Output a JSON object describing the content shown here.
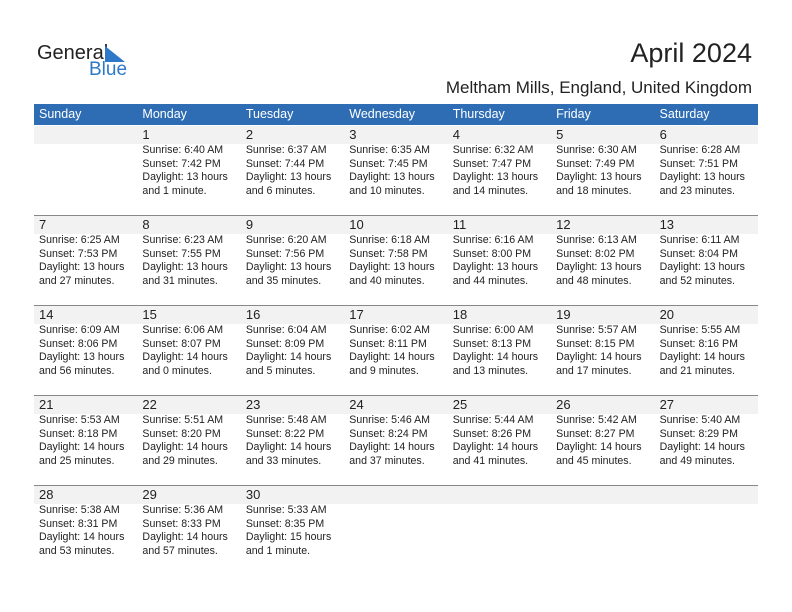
{
  "logo": {
    "general": "General",
    "blue": "Blue"
  },
  "title": "April 2024",
  "location": "Meltham Mills, England, United Kingdom",
  "colors": {
    "header": "#2e6db4",
    "logo_blue": "#2e78c8",
    "number_row": "#f2f2f2"
  },
  "weekdays": [
    "Sunday",
    "Monday",
    "Tuesday",
    "Wednesday",
    "Thursday",
    "Friday",
    "Saturday"
  ],
  "weeks": [
    [
      null,
      {
        "day": "1",
        "sunrise": "Sunrise: 6:40 AM",
        "sunset": "Sunset: 7:42 PM",
        "daylight1": "Daylight: 13 hours",
        "daylight2": "and 1 minute."
      },
      {
        "day": "2",
        "sunrise": "Sunrise: 6:37 AM",
        "sunset": "Sunset: 7:44 PM",
        "daylight1": "Daylight: 13 hours",
        "daylight2": "and 6 minutes."
      },
      {
        "day": "3",
        "sunrise": "Sunrise: 6:35 AM",
        "sunset": "Sunset: 7:45 PM",
        "daylight1": "Daylight: 13 hours",
        "daylight2": "and 10 minutes."
      },
      {
        "day": "4",
        "sunrise": "Sunrise: 6:32 AM",
        "sunset": "Sunset: 7:47 PM",
        "daylight1": "Daylight: 13 hours",
        "daylight2": "and 14 minutes."
      },
      {
        "day": "5",
        "sunrise": "Sunrise: 6:30 AM",
        "sunset": "Sunset: 7:49 PM",
        "daylight1": "Daylight: 13 hours",
        "daylight2": "and 18 minutes."
      },
      {
        "day": "6",
        "sunrise": "Sunrise: 6:28 AM",
        "sunset": "Sunset: 7:51 PM",
        "daylight1": "Daylight: 13 hours",
        "daylight2": "and 23 minutes."
      }
    ],
    [
      {
        "day": "7",
        "sunrise": "Sunrise: 6:25 AM",
        "sunset": "Sunset: 7:53 PM",
        "daylight1": "Daylight: 13 hours",
        "daylight2": "and 27 minutes."
      },
      {
        "day": "8",
        "sunrise": "Sunrise: 6:23 AM",
        "sunset": "Sunset: 7:55 PM",
        "daylight1": "Daylight: 13 hours",
        "daylight2": "and 31 minutes."
      },
      {
        "day": "9",
        "sunrise": "Sunrise: 6:20 AM",
        "sunset": "Sunset: 7:56 PM",
        "daylight1": "Daylight: 13 hours",
        "daylight2": "and 35 minutes."
      },
      {
        "day": "10",
        "sunrise": "Sunrise: 6:18 AM",
        "sunset": "Sunset: 7:58 PM",
        "daylight1": "Daylight: 13 hours",
        "daylight2": "and 40 minutes."
      },
      {
        "day": "11",
        "sunrise": "Sunrise: 6:16 AM",
        "sunset": "Sunset: 8:00 PM",
        "daylight1": "Daylight: 13 hours",
        "daylight2": "and 44 minutes."
      },
      {
        "day": "12",
        "sunrise": "Sunrise: 6:13 AM",
        "sunset": "Sunset: 8:02 PM",
        "daylight1": "Daylight: 13 hours",
        "daylight2": "and 48 minutes."
      },
      {
        "day": "13",
        "sunrise": "Sunrise: 6:11 AM",
        "sunset": "Sunset: 8:04 PM",
        "daylight1": "Daylight: 13 hours",
        "daylight2": "and 52 minutes."
      }
    ],
    [
      {
        "day": "14",
        "sunrise": "Sunrise: 6:09 AM",
        "sunset": "Sunset: 8:06 PM",
        "daylight1": "Daylight: 13 hours",
        "daylight2": "and 56 minutes."
      },
      {
        "day": "15",
        "sunrise": "Sunrise: 6:06 AM",
        "sunset": "Sunset: 8:07 PM",
        "daylight1": "Daylight: 14 hours",
        "daylight2": "and 0 minutes."
      },
      {
        "day": "16",
        "sunrise": "Sunrise: 6:04 AM",
        "sunset": "Sunset: 8:09 PM",
        "daylight1": "Daylight: 14 hours",
        "daylight2": "and 5 minutes."
      },
      {
        "day": "17",
        "sunrise": "Sunrise: 6:02 AM",
        "sunset": "Sunset: 8:11 PM",
        "daylight1": "Daylight: 14 hours",
        "daylight2": "and 9 minutes."
      },
      {
        "day": "18",
        "sunrise": "Sunrise: 6:00 AM",
        "sunset": "Sunset: 8:13 PM",
        "daylight1": "Daylight: 14 hours",
        "daylight2": "and 13 minutes."
      },
      {
        "day": "19",
        "sunrise": "Sunrise: 5:57 AM",
        "sunset": "Sunset: 8:15 PM",
        "daylight1": "Daylight: 14 hours",
        "daylight2": "and 17 minutes."
      },
      {
        "day": "20",
        "sunrise": "Sunrise: 5:55 AM",
        "sunset": "Sunset: 8:16 PM",
        "daylight1": "Daylight: 14 hours",
        "daylight2": "and 21 minutes."
      }
    ],
    [
      {
        "day": "21",
        "sunrise": "Sunrise: 5:53 AM",
        "sunset": "Sunset: 8:18 PM",
        "daylight1": "Daylight: 14 hours",
        "daylight2": "and 25 minutes."
      },
      {
        "day": "22",
        "sunrise": "Sunrise: 5:51 AM",
        "sunset": "Sunset: 8:20 PM",
        "daylight1": "Daylight: 14 hours",
        "daylight2": "and 29 minutes."
      },
      {
        "day": "23",
        "sunrise": "Sunrise: 5:48 AM",
        "sunset": "Sunset: 8:22 PM",
        "daylight1": "Daylight: 14 hours",
        "daylight2": "and 33 minutes."
      },
      {
        "day": "24",
        "sunrise": "Sunrise: 5:46 AM",
        "sunset": "Sunset: 8:24 PM",
        "daylight1": "Daylight: 14 hours",
        "daylight2": "and 37 minutes."
      },
      {
        "day": "25",
        "sunrise": "Sunrise: 5:44 AM",
        "sunset": "Sunset: 8:26 PM",
        "daylight1": "Daylight: 14 hours",
        "daylight2": "and 41 minutes."
      },
      {
        "day": "26",
        "sunrise": "Sunrise: 5:42 AM",
        "sunset": "Sunset: 8:27 PM",
        "daylight1": "Daylight: 14 hours",
        "daylight2": "and 45 minutes."
      },
      {
        "day": "27",
        "sunrise": "Sunrise: 5:40 AM",
        "sunset": "Sunset: 8:29 PM",
        "daylight1": "Daylight: 14 hours",
        "daylight2": "and 49 minutes."
      }
    ],
    [
      {
        "day": "28",
        "sunrise": "Sunrise: 5:38 AM",
        "sunset": "Sunset: 8:31 PM",
        "daylight1": "Daylight: 14 hours",
        "daylight2": "and 53 minutes."
      },
      {
        "day": "29",
        "sunrise": "Sunrise: 5:36 AM",
        "sunset": "Sunset: 8:33 PM",
        "daylight1": "Daylight: 14 hours",
        "daylight2": "and 57 minutes."
      },
      {
        "day": "30",
        "sunrise": "Sunrise: 5:33 AM",
        "sunset": "Sunset: 8:35 PM",
        "daylight1": "Daylight: 15 hours",
        "daylight2": "and 1 minute."
      },
      null,
      null,
      null,
      null
    ]
  ]
}
